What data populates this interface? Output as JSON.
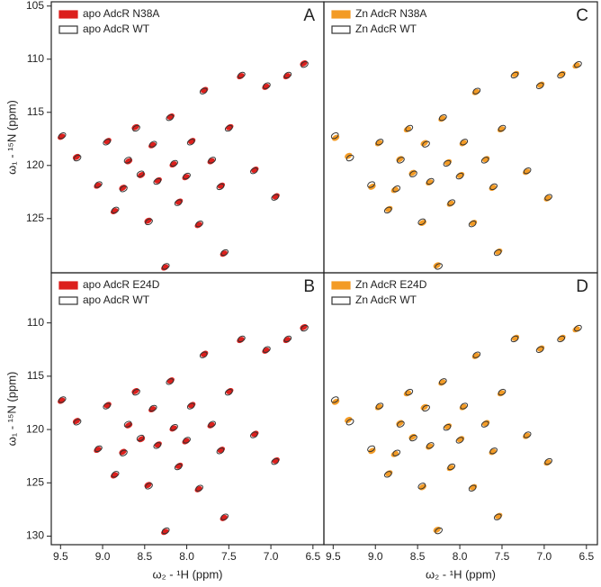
{
  "chart_data": [
    {
      "type": "scatter",
      "panel_label": "A",
      "y_label": "ω₁ - ¹⁵N (ppm)",
      "xlim": [
        9.61,
        6.37
      ],
      "ylim": [
        104.6,
        130.1
      ],
      "yticks": [
        105,
        110,
        115,
        120,
        125
      ],
      "series": [
        {
          "name": "apo AdcR N38A",
          "color": "#dc1f1c",
          "style": "filled",
          "x": [
            9.49,
            9.31,
            9.06,
            8.94,
            8.86,
            8.76,
            8.69,
            8.61,
            8.54,
            8.46,
            8.41,
            8.34,
            8.26,
            8.19,
            8.16,
            8.09,
            8.01,
            7.94,
            7.86,
            7.79,
            7.71,
            7.59,
            7.56,
            7.49,
            7.36,
            7.19,
            7.06,
            6.94,
            6.81,
            6.61
          ],
          "values": [
            117.3,
            119.2,
            121.9,
            117.7,
            124.3,
            122.1,
            119.6,
            116.4,
            120.9,
            125.2,
            118.1,
            121.4,
            129.6,
            115.4,
            119.9,
            123.4,
            121.1,
            117.7,
            125.6,
            112.9,
            119.6,
            121.9,
            128.3,
            116.4,
            111.6,
            120.4,
            112.6,
            122.9,
            111.6,
            110.4
          ]
        },
        {
          "name": "apo AdcR WT",
          "color": "#333333",
          "style": "outline",
          "x": [
            9.48,
            9.3,
            9.05,
            8.95,
            8.85,
            8.75,
            8.7,
            8.6,
            8.55,
            8.45,
            8.4,
            8.35,
            8.25,
            8.2,
            8.15,
            8.1,
            8.0,
            7.95,
            7.85,
            7.8,
            7.7,
            7.6,
            7.55,
            7.5,
            7.35,
            7.2,
            7.05,
            6.95,
            6.8,
            6.6
          ],
          "values": [
            117.2,
            119.3,
            121.8,
            117.8,
            124.2,
            122.2,
            119.5,
            116.5,
            120.8,
            125.3,
            118,
            121.5,
            129.5,
            115.5,
            119.8,
            123.5,
            121,
            117.8,
            125.5,
            113,
            119.5,
            122,
            128.2,
            116.5,
            111.5,
            120.5,
            112.5,
            123,
            111.5,
            110.5
          ]
        }
      ]
    },
    {
      "type": "scatter",
      "panel_label": "B",
      "y_label": "ω₁ - ¹⁵N (ppm)",
      "x_label": "ω₂ - ¹H  (ppm)",
      "xlim": [
        9.61,
        6.37
      ],
      "ylim": [
        105.3,
        130.8
      ],
      "yticks": [
        110,
        115,
        120,
        125,
        130
      ],
      "xticks": [
        9.5,
        {
          "value": 9,
          "label": "9.0"
        },
        8.5,
        {
          "value": 8,
          "label": "8.0"
        },
        7.5,
        {
          "value": 7,
          "label": "7.0"
        },
        6.5
      ],
      "series": [
        {
          "name": "apo AdcR E24D",
          "color": "#dc1f1c",
          "style": "filled",
          "x": [
            9.49,
            9.31,
            9.06,
            8.94,
            8.86,
            8.76,
            8.69,
            8.61,
            8.54,
            8.46,
            8.41,
            8.34,
            8.26,
            8.19,
            8.16,
            8.09,
            8.01,
            7.94,
            7.86,
            7.79,
            7.71,
            7.59,
            7.56,
            7.49,
            7.36,
            7.19,
            7.06,
            6.94,
            6.81,
            6.61
          ],
          "values": [
            117.3,
            119.2,
            121.9,
            117.7,
            124.3,
            122.1,
            119.6,
            116.4,
            120.9,
            125.2,
            118.1,
            121.4,
            129.6,
            115.4,
            119.9,
            123.4,
            121.1,
            117.7,
            125.6,
            112.9,
            119.6,
            121.9,
            128.3,
            116.4,
            111.6,
            120.4,
            112.6,
            122.9,
            111.6,
            110.4
          ]
        },
        {
          "name": "apo AdcR WT",
          "color": "#333333",
          "style": "outline",
          "x": [
            9.48,
            9.3,
            9.05,
            8.95,
            8.85,
            8.75,
            8.7,
            8.6,
            8.55,
            8.45,
            8.4,
            8.35,
            8.25,
            8.2,
            8.15,
            8.1,
            8.0,
            7.95,
            7.85,
            7.8,
            7.7,
            7.6,
            7.55,
            7.5,
            7.35,
            7.2,
            7.05,
            6.95,
            6.8,
            6.6
          ],
          "values": [
            117.2,
            119.3,
            121.8,
            117.8,
            124.2,
            122.2,
            119.5,
            116.5,
            120.8,
            125.3,
            118,
            121.5,
            129.5,
            115.5,
            119.8,
            123.5,
            121,
            117.8,
            125.5,
            113,
            119.5,
            122,
            128.2,
            116.5,
            111.5,
            120.5,
            112.5,
            123,
            111.5,
            110.5
          ]
        }
      ]
    },
    {
      "type": "scatter",
      "panel_label": "C",
      "xlim": [
        9.61,
        6.37
      ],
      "ylim": [
        104.6,
        130.1
      ],
      "series": [
        {
          "name": "Zn AdcR N38A",
          "color": "#f39b25",
          "style": "filled",
          "x": [
            9.47,
            9.32,
            9.04,
            8.96,
            8.84,
            8.77,
            8.71,
            8.62,
            8.56,
            8.44,
            8.42,
            8.36,
            8.27,
            8.21,
            8.14,
            8.11,
            7.99,
            7.96,
            7.84,
            7.81,
            7.69,
            7.61,
            7.54,
            7.51,
            7.34,
            7.21,
            7.04,
            6.96,
            6.79,
            6.62
          ],
          "values": [
            117.4,
            119.1,
            122.0,
            117.9,
            124.1,
            122.3,
            119.4,
            116.6,
            120.7,
            125.4,
            117.9,
            121.6,
            129.4,
            115.6,
            119.7,
            123.6,
            120.9,
            117.9,
            125.4,
            113.1,
            119.4,
            122.1,
            128.1,
            116.6,
            111.4,
            120.6,
            112.4,
            123.1,
            111.4,
            110.6
          ]
        },
        {
          "name": "Zn AdcR WT",
          "color": "#333333",
          "style": "outline",
          "x": [
            9.48,
            9.3,
            9.05,
            8.95,
            8.85,
            8.75,
            8.7,
            8.6,
            8.55,
            8.45,
            8.4,
            8.35,
            8.25,
            8.2,
            8.15,
            8.1,
            8.0,
            7.95,
            7.85,
            7.8,
            7.7,
            7.6,
            7.55,
            7.5,
            7.35,
            7.2,
            7.05,
            6.95,
            6.8,
            6.6
          ],
          "values": [
            117.2,
            119.3,
            121.8,
            117.8,
            124.2,
            122.2,
            119.5,
            116.5,
            120.8,
            125.3,
            118,
            121.5,
            129.5,
            115.5,
            119.8,
            123.5,
            121,
            117.8,
            125.5,
            113,
            119.5,
            122,
            128.2,
            116.5,
            111.5,
            120.5,
            112.5,
            123,
            111.5,
            110.5
          ]
        }
      ]
    },
    {
      "type": "scatter",
      "panel_label": "D",
      "x_label": "ω₂ - ¹H  (ppm)",
      "xlim": [
        9.61,
        6.37
      ],
      "ylim": [
        105.3,
        130.8
      ],
      "xticks": [
        9.5,
        {
          "value": 9,
          "label": "9.0"
        },
        8.5,
        {
          "value": 8,
          "label": "8.0"
        },
        7.5,
        {
          "value": 7,
          "label": "7.0"
        },
        6.5
      ],
      "series": [
        {
          "name": "Zn AdcR E24D",
          "color": "#f39b25",
          "style": "filled",
          "x": [
            9.47,
            9.32,
            9.04,
            8.96,
            8.84,
            8.77,
            8.71,
            8.62,
            8.56,
            8.44,
            8.42,
            8.36,
            8.27,
            8.21,
            8.14,
            8.11,
            7.99,
            7.96,
            7.84,
            7.81,
            7.69,
            7.61,
            7.54,
            7.51,
            7.34,
            7.21,
            7.04,
            6.96,
            6.79,
            6.62
          ],
          "values": [
            117.4,
            119.1,
            122.0,
            117.9,
            124.1,
            122.3,
            119.4,
            116.6,
            120.7,
            125.4,
            117.9,
            121.6,
            129.4,
            115.6,
            119.7,
            123.6,
            120.9,
            117.9,
            125.4,
            113.1,
            119.4,
            122.1,
            128.1,
            116.6,
            111.4,
            120.6,
            112.4,
            123.1,
            111.4,
            110.6
          ]
        },
        {
          "name": "Zn AdcR WT",
          "color": "#333333",
          "style": "outline",
          "x": [
            9.48,
            9.3,
            9.05,
            8.95,
            8.85,
            8.75,
            8.7,
            8.6,
            8.55,
            8.45,
            8.4,
            8.35,
            8.25,
            8.2,
            8.15,
            8.1,
            8.0,
            7.95,
            7.85,
            7.8,
            7.7,
            7.6,
            7.55,
            7.5,
            7.35,
            7.2,
            7.05,
            6.95,
            6.8,
            6.6
          ],
          "values": [
            117.2,
            119.3,
            121.8,
            117.8,
            124.2,
            122.2,
            119.5,
            116.5,
            120.8,
            125.3,
            118,
            121.5,
            129.5,
            115.5,
            119.8,
            123.5,
            121,
            117.8,
            125.5,
            113,
            119.5,
            122,
            128.2,
            116.5,
            111.5,
            120.5,
            112.5,
            123,
            111.5,
            110.5
          ]
        }
      ]
    }
  ]
}
